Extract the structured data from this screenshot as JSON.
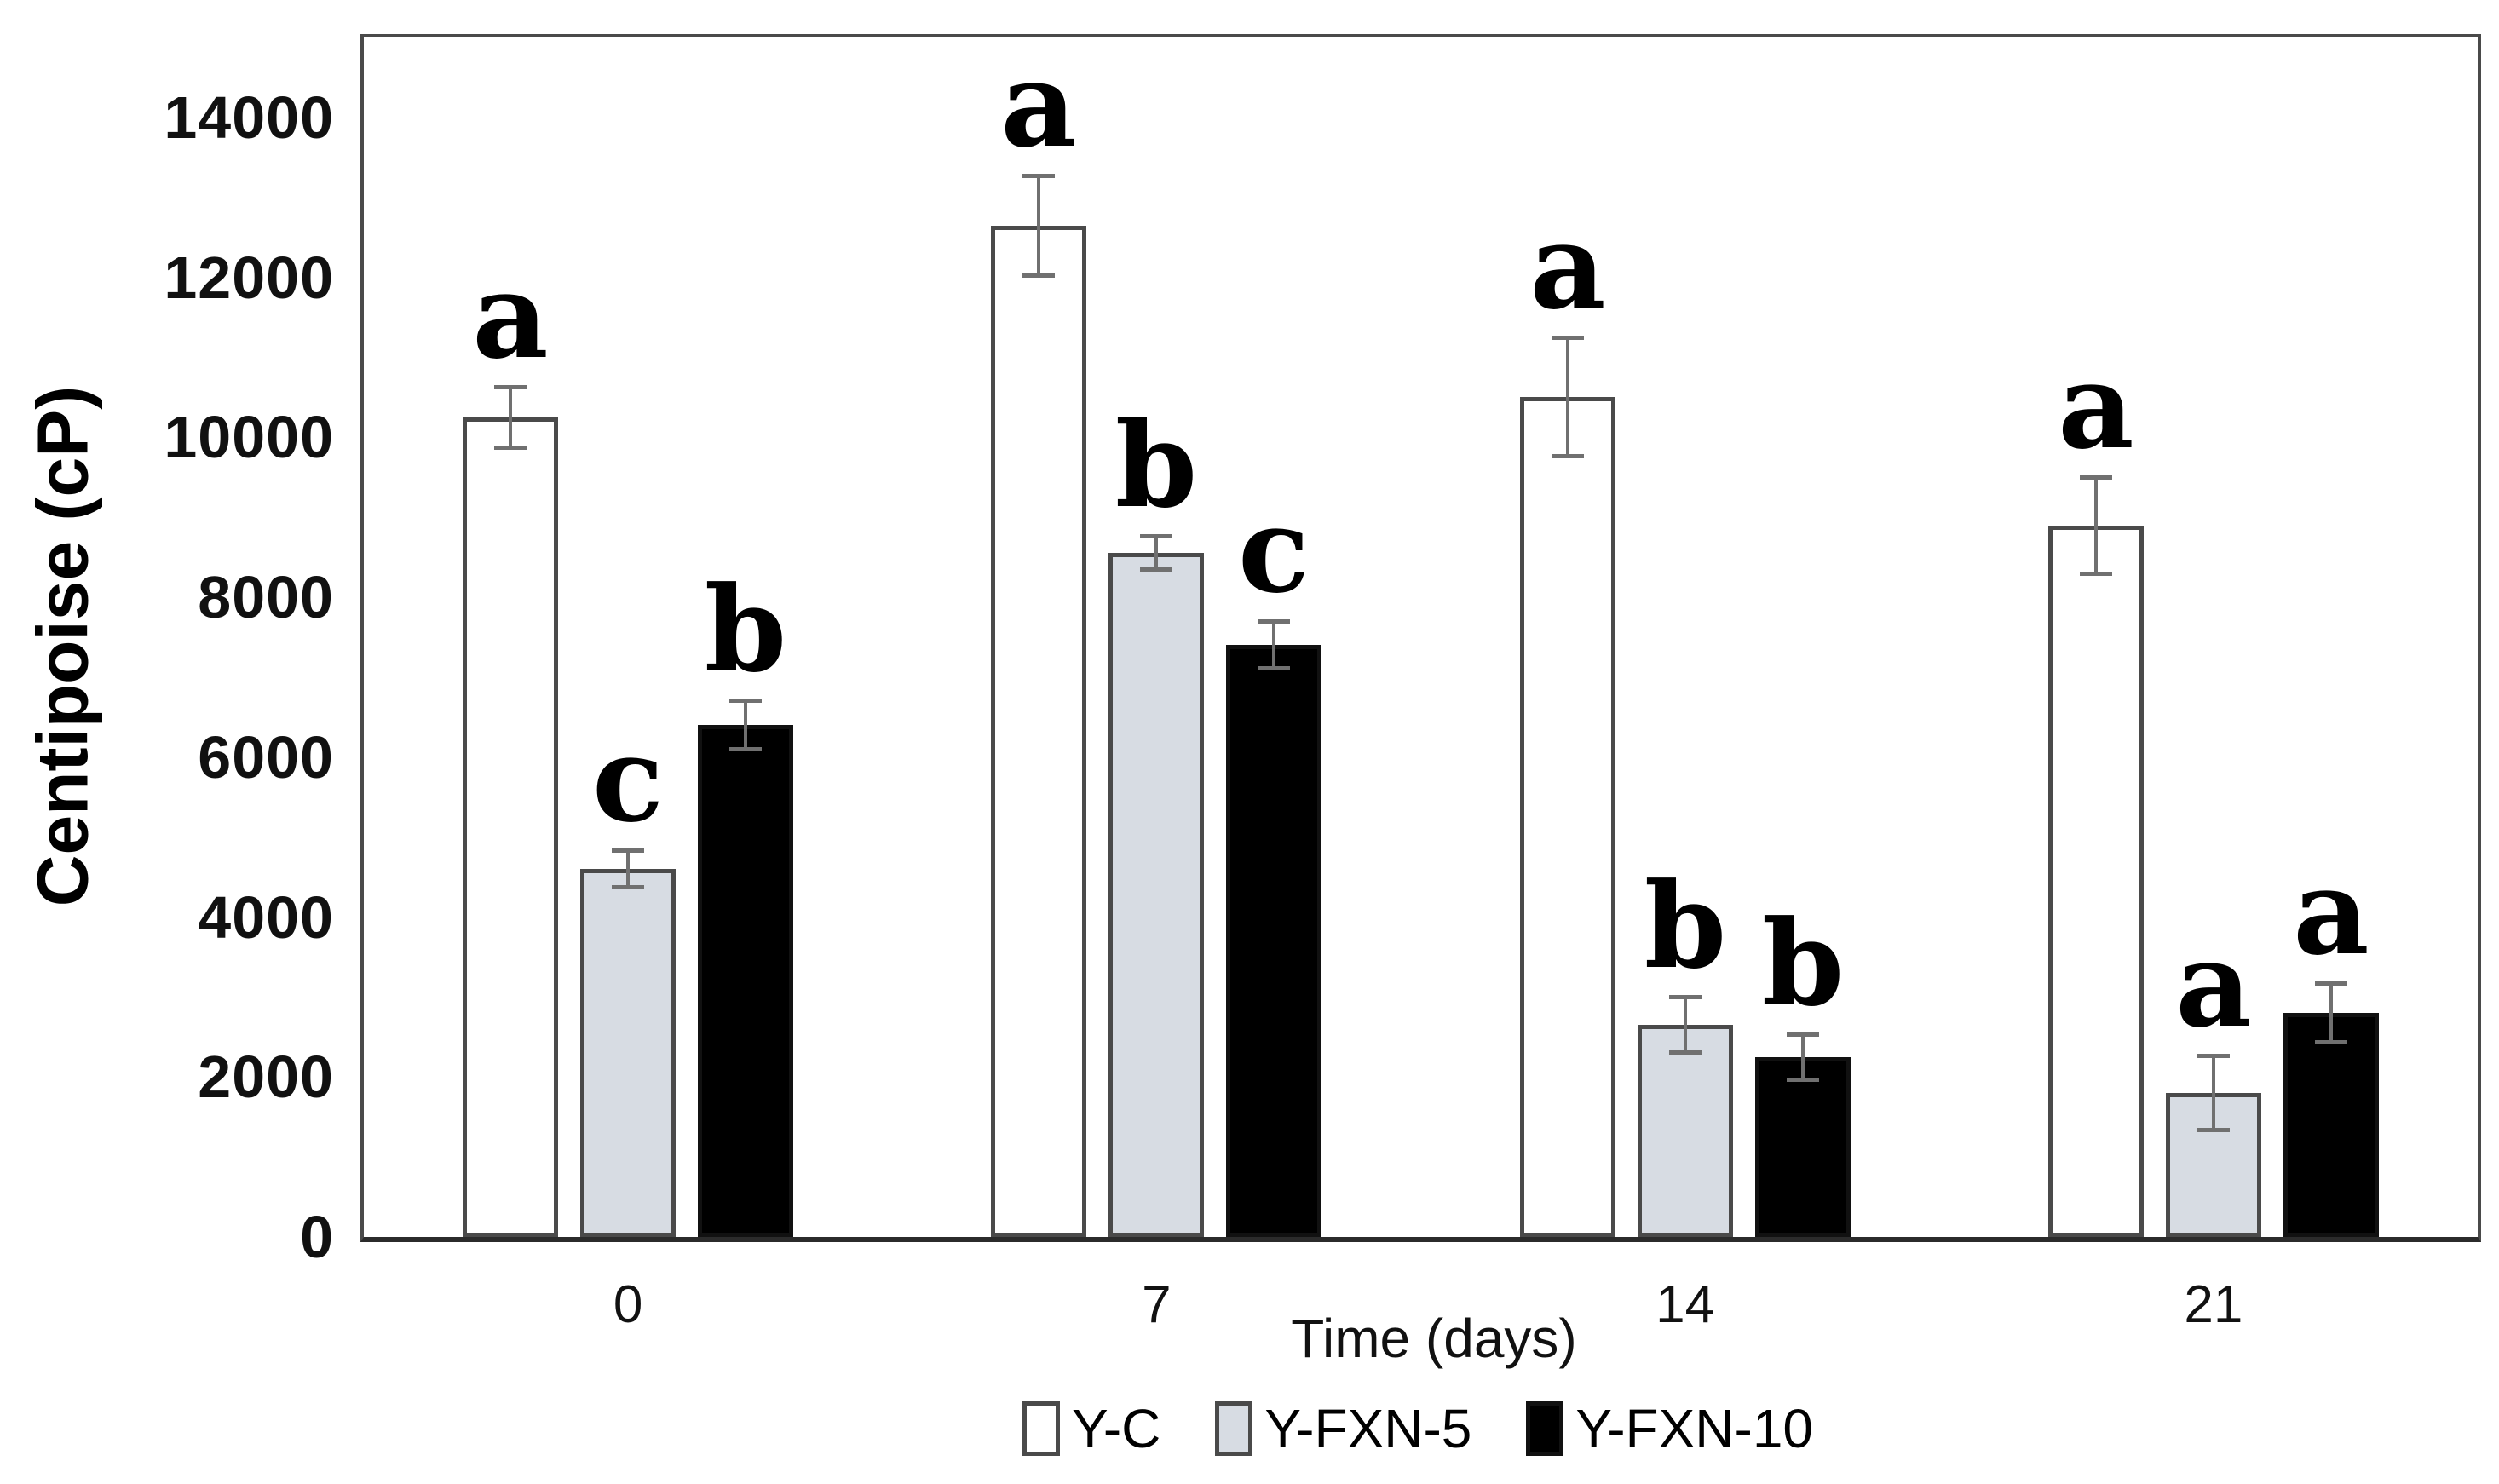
{
  "chart_data": {
    "type": "bar",
    "title": "",
    "xlabel": "Time (days)",
    "ylabel": "Centipoise (cP)",
    "categories": [
      "0",
      "7",
      "14",
      "21"
    ],
    "series": [
      {
        "name": "Y-C",
        "fill": "#ffffff",
        "border": "#4a4a4a",
        "values": [
          10250,
          12650,
          10500,
          8900
        ],
        "errors": [
          410,
          650,
          770,
          630
        ],
        "letters": [
          "a",
          "a",
          "a",
          "a"
        ]
      },
      {
        "name": "Y-FXN-5",
        "fill": "#d7dce3",
        "border": "#4a4a4a",
        "values": [
          4600,
          8550,
          2650,
          1800
        ],
        "errors": [
          260,
          230,
          370,
          490
        ],
        "letters": [
          "c",
          "b",
          "b",
          "a"
        ]
      },
      {
        "name": "Y-FXN-10",
        "fill": "#000000",
        "border": "#111111",
        "values": [
          6400,
          7400,
          2250,
          2800
        ],
        "errors": [
          330,
          320,
          310,
          390
        ],
        "letters": [
          "b",
          "c",
          "b",
          "a"
        ]
      }
    ],
    "ylim": [
      0,
      15000
    ],
    "yticks": [
      0,
      2000,
      4000,
      6000,
      8000,
      10000,
      12000,
      14000
    ],
    "grid": false,
    "legend_position": "bottom",
    "error_bar_color": "#707070",
    "frame_color": "#4a4a4a",
    "text_color": "#000000"
  }
}
